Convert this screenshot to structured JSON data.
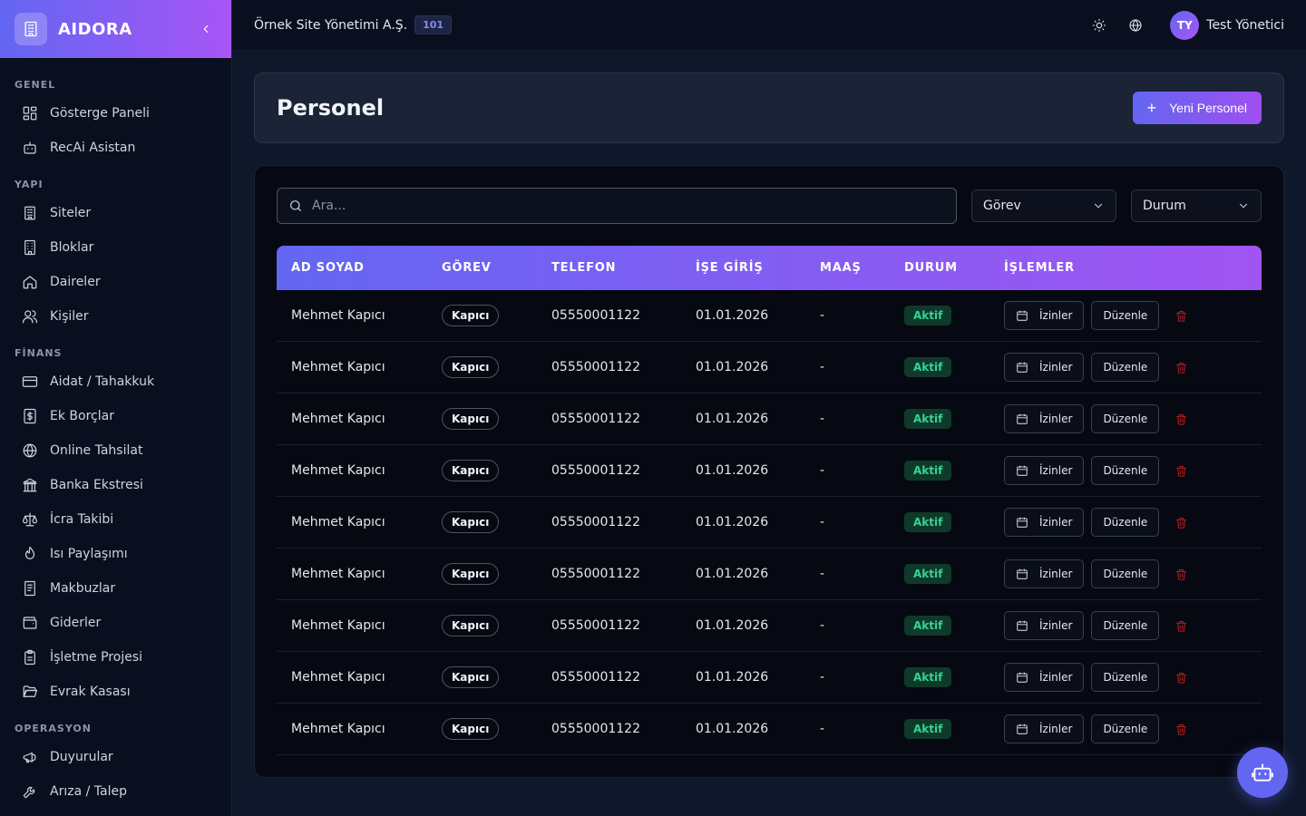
{
  "brand": {
    "name": "AIDORA"
  },
  "sidebar": {
    "sections": [
      {
        "title": "GENEL",
        "items": [
          {
            "label": "Gösterge Paneli",
            "icon": "dashboard-icon"
          },
          {
            "label": "RecAi Asistan",
            "icon": "bot-icon"
          }
        ]
      },
      {
        "title": "YAPI",
        "items": [
          {
            "label": "Siteler",
            "icon": "building-icon"
          },
          {
            "label": "Bloklar",
            "icon": "block-icon"
          },
          {
            "label": "Daireler",
            "icon": "home-icon"
          },
          {
            "label": "Kişiler",
            "icon": "users-icon"
          }
        ]
      },
      {
        "title": "FİNANS",
        "items": [
          {
            "label": "Aidat / Tahakkuk",
            "icon": "credit-card-icon"
          },
          {
            "label": "Ek Borçlar",
            "icon": "dollar-icon"
          },
          {
            "label": "Online Tahsilat",
            "icon": "globe-icon"
          },
          {
            "label": "Banka Ekstresi",
            "icon": "bank-icon"
          },
          {
            "label": "İcra Takibi",
            "icon": "scale-icon"
          },
          {
            "label": "Isı Paylaşımı",
            "icon": "flame-icon"
          },
          {
            "label": "Makbuzlar",
            "icon": "receipt-icon"
          },
          {
            "label": "Giderler",
            "icon": "wallet-icon"
          },
          {
            "label": "İşletme Projesi",
            "icon": "clipboard-icon"
          },
          {
            "label": "Evrak Kasası",
            "icon": "folder-icon"
          }
        ]
      },
      {
        "title": "OPERASYON",
        "items": [
          {
            "label": "Duyurular",
            "icon": "megaphone-icon"
          },
          {
            "label": "Arıza / Talep",
            "icon": "wrench-icon"
          }
        ]
      }
    ]
  },
  "header": {
    "org_name": "Örnek Site Yönetimi A.Ş.",
    "org_badge": "101",
    "user_initials": "TY",
    "user_name": "Test Yönetici"
  },
  "page": {
    "title": "Personel",
    "new_button": "Yeni Personel"
  },
  "filters": {
    "search_placeholder": "Ara...",
    "role_select": "Görev",
    "status_select": "Durum"
  },
  "table": {
    "columns": [
      "AD SOYAD",
      "GÖREV",
      "TELEFON",
      "İŞE GİRİŞ",
      "MAAŞ",
      "DURUM",
      "İŞLEMLER"
    ],
    "action_leave": "İzinler",
    "action_edit": "Düzenle",
    "rows": [
      {
        "name": "Mehmet Kapıcı",
        "role": "Kapıcı",
        "phone": "05550001122",
        "start": "01.01.2026",
        "salary": "-",
        "status": "Aktif"
      },
      {
        "name": "Mehmet Kapıcı",
        "role": "Kapıcı",
        "phone": "05550001122",
        "start": "01.01.2026",
        "salary": "-",
        "status": "Aktif"
      },
      {
        "name": "Mehmet Kapıcı",
        "role": "Kapıcı",
        "phone": "05550001122",
        "start": "01.01.2026",
        "salary": "-",
        "status": "Aktif"
      },
      {
        "name": "Mehmet Kapıcı",
        "role": "Kapıcı",
        "phone": "05550001122",
        "start": "01.01.2026",
        "salary": "-",
        "status": "Aktif"
      },
      {
        "name": "Mehmet Kapıcı",
        "role": "Kapıcı",
        "phone": "05550001122",
        "start": "01.01.2026",
        "salary": "-",
        "status": "Aktif"
      },
      {
        "name": "Mehmet Kapıcı",
        "role": "Kapıcı",
        "phone": "05550001122",
        "start": "01.01.2026",
        "salary": "-",
        "status": "Aktif"
      },
      {
        "name": "Mehmet Kapıcı",
        "role": "Kapıcı",
        "phone": "05550001122",
        "start": "01.01.2026",
        "salary": "-",
        "status": "Aktif"
      },
      {
        "name": "Mehmet Kapıcı",
        "role": "Kapıcı",
        "phone": "05550001122",
        "start": "01.01.2026",
        "salary": "-",
        "status": "Aktif"
      },
      {
        "name": "Mehmet Kapıcı",
        "role": "Kapıcı",
        "phone": "05550001122",
        "start": "01.01.2026",
        "salary": "-",
        "status": "Aktif"
      }
    ]
  },
  "colors": {
    "accent": "#6366f1",
    "accent_2": "#a855f7",
    "success": "#34d399",
    "danger": "#b91c1c"
  }
}
